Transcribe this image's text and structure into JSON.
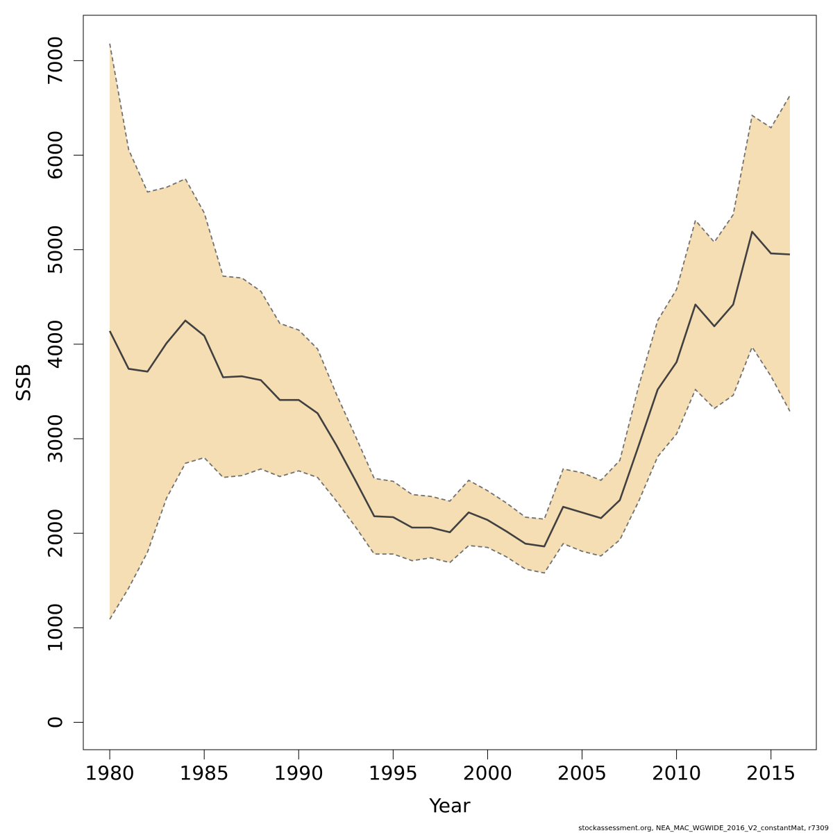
{
  "chart_data": {
    "type": "line",
    "title": "",
    "xlabel": "Year",
    "ylabel": "SSB",
    "footnote": "stockassessment.org, NEA_MAC_WGWIDE_2016_V2_constantMat, r7309",
    "xlim": [
      1978.6,
      2017.4
    ],
    "ylim": [
      -290,
      7480
    ],
    "x_ticks": [
      1980,
      1985,
      1990,
      1995,
      2000,
      2005,
      2010,
      2015
    ],
    "y_ticks": [
      0,
      1000,
      2000,
      3000,
      4000,
      5000,
      6000,
      7000
    ],
    "colors": {
      "band_fill": "#f5deb3",
      "bound_line": "#707070",
      "estimate_line": "#404040",
      "frame": "#000000"
    },
    "x": [
      1980,
      1981,
      1982,
      1983,
      1984,
      1985,
      1986,
      1987,
      1988,
      1989,
      1990,
      1991,
      1992,
      1993,
      1994,
      1995,
      1996,
      1997,
      1998,
      1999,
      2000,
      2001,
      2002,
      2003,
      2004,
      2005,
      2006,
      2007,
      2008,
      2009,
      2010,
      2011,
      2012,
      2013,
      2014,
      2015,
      2016
    ],
    "series": [
      {
        "name": "SSB estimate",
        "values": [
          4140,
          3740,
          3710,
          4010,
          4250,
          4090,
          3650,
          3660,
          3620,
          3410,
          3410,
          3270,
          2930,
          2560,
          2180,
          2170,
          2060,
          2060,
          2010,
          2220,
          2140,
          2020,
          1890,
          1860,
          2280,
          2220,
          2160,
          2350,
          2930,
          3520,
          3810,
          4420,
          4190,
          4420,
          5190,
          4960,
          4950
        ]
      },
      {
        "name": "Upper bound",
        "values": [
          7180,
          6060,
          5610,
          5660,
          5750,
          5390,
          4720,
          4700,
          4560,
          4220,
          4150,
          3950,
          3470,
          3030,
          2580,
          2550,
          2410,
          2390,
          2340,
          2560,
          2450,
          2320,
          2170,
          2150,
          2680,
          2640,
          2560,
          2770,
          3560,
          4250,
          4580,
          5310,
          5080,
          5370,
          6420,
          6290,
          6630
        ]
      },
      {
        "name": "Lower bound",
        "values": [
          1090,
          1420,
          1800,
          2370,
          2740,
          2800,
          2590,
          2610,
          2680,
          2600,
          2660,
          2590,
          2340,
          2070,
          1780,
          1780,
          1710,
          1740,
          1690,
          1870,
          1850,
          1750,
          1620,
          1580,
          1890,
          1810,
          1760,
          1930,
          2340,
          2810,
          3050,
          3520,
          3320,
          3460,
          3970,
          3660,
          3290
        ]
      }
    ]
  }
}
